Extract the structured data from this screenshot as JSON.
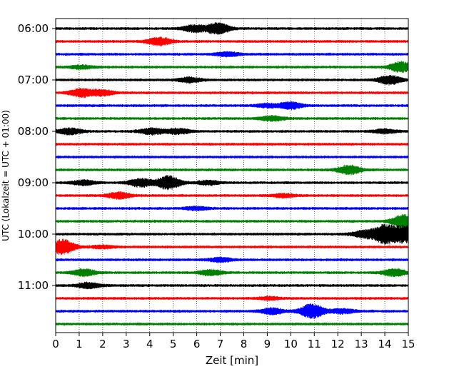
{
  "chart_data": {
    "type": "line",
    "title": "",
    "xlabel": "Zeit  [min]",
    "ylabel": "UTC (Lokalzeit = UTC + 01:00)",
    "xlim": [
      0,
      15
    ],
    "x_ticks": [
      "0",
      "1",
      "2",
      "3",
      "4",
      "5",
      "6",
      "7",
      "8",
      "9",
      "10",
      "11",
      "12",
      "13",
      "14",
      "15"
    ],
    "y_tick_labels": [
      "06:00",
      "07:00",
      "08:00",
      "09:00",
      "10:00",
      "11:00"
    ],
    "grid": "vertical dotted lines at each minute",
    "trace_interval_minutes": 15,
    "trace_colors": [
      "#000000",
      "#ff0000",
      "#0000ff",
      "#008000"
    ],
    "traces": [
      {
        "start": "06:00",
        "events": [
          {
            "t": 6.9,
            "amp": 1.6
          },
          {
            "t": 5.9,
            "amp": 1.0
          }
        ]
      },
      {
        "start": "06:15",
        "events": [
          {
            "t": 4.4,
            "amp": 1.2
          }
        ]
      },
      {
        "start": "06:30",
        "events": [
          {
            "t": 7.3,
            "amp": 0.6
          }
        ]
      },
      {
        "start": "06:45",
        "events": [
          {
            "t": 14.7,
            "amp": 1.5
          },
          {
            "t": 1.1,
            "amp": 0.5
          }
        ]
      },
      {
        "start": "07:00",
        "events": [
          {
            "t": 14.2,
            "amp": 1.3
          },
          {
            "t": 5.7,
            "amp": 0.7
          }
        ]
      },
      {
        "start": "07:15",
        "events": [
          {
            "t": 1.1,
            "amp": 1.2
          },
          {
            "t": 2.0,
            "amp": 0.8
          }
        ]
      },
      {
        "start": "07:30",
        "events": [
          {
            "t": 10.0,
            "amp": 1.0
          },
          {
            "t": 9.0,
            "amp": 0.5
          }
        ]
      },
      {
        "start": "07:45",
        "events": [
          {
            "t": 9.2,
            "amp": 0.7
          }
        ]
      },
      {
        "start": "08:00",
        "events": [
          {
            "t": 0.6,
            "amp": 0.9
          },
          {
            "t": 4.1,
            "amp": 0.9
          },
          {
            "t": 5.2,
            "amp": 0.8
          },
          {
            "t": 14.0,
            "amp": 0.6
          }
        ]
      },
      {
        "start": "08:15",
        "events": []
      },
      {
        "start": "08:30",
        "events": []
      },
      {
        "start": "08:45",
        "events": [
          {
            "t": 12.5,
            "amp": 1.3
          }
        ]
      },
      {
        "start": "09:00",
        "events": [
          {
            "t": 4.8,
            "amp": 2.0
          },
          {
            "t": 3.6,
            "amp": 1.2
          },
          {
            "t": 1.2,
            "amp": 0.7
          },
          {
            "t": 6.5,
            "amp": 0.6
          }
        ]
      },
      {
        "start": "09:15",
        "events": [
          {
            "t": 2.7,
            "amp": 0.9
          },
          {
            "t": 9.7,
            "amp": 0.5
          }
        ]
      },
      {
        "start": "09:30",
        "events": [
          {
            "t": 6.0,
            "amp": 0.5
          }
        ]
      },
      {
        "start": "09:45",
        "events": [
          {
            "t": 14.8,
            "amp": 1.9
          }
        ]
      },
      {
        "start": "10:00",
        "events": [
          {
            "t": 14.0,
            "amp": 2.8
          },
          {
            "t": 14.85,
            "amp": 2.4
          },
          {
            "t": 13.1,
            "amp": 1.0
          }
        ]
      },
      {
        "start": "10:15",
        "events": [
          {
            "t": 0.3,
            "amp": 2.2
          },
          {
            "t": 2.0,
            "amp": 0.4
          }
        ]
      },
      {
        "start": "10:30",
        "events": [
          {
            "t": 7.0,
            "amp": 0.6
          }
        ]
      },
      {
        "start": "10:45",
        "events": [
          {
            "t": 1.2,
            "amp": 1.0
          },
          {
            "t": 6.6,
            "amp": 0.8
          },
          {
            "t": 14.4,
            "amp": 1.1
          }
        ]
      },
      {
        "start": "11:00",
        "events": [
          {
            "t": 1.4,
            "amp": 0.8
          }
        ]
      },
      {
        "start": "11:15",
        "events": [
          {
            "t": 9.1,
            "amp": 0.4
          }
        ]
      },
      {
        "start": "11:30",
        "events": [
          {
            "t": 10.9,
            "amp": 2.2
          },
          {
            "t": 9.2,
            "amp": 0.9
          },
          {
            "t": 12.2,
            "amp": 0.7
          }
        ]
      },
      {
        "start": "11:45",
        "events": []
      }
    ]
  }
}
